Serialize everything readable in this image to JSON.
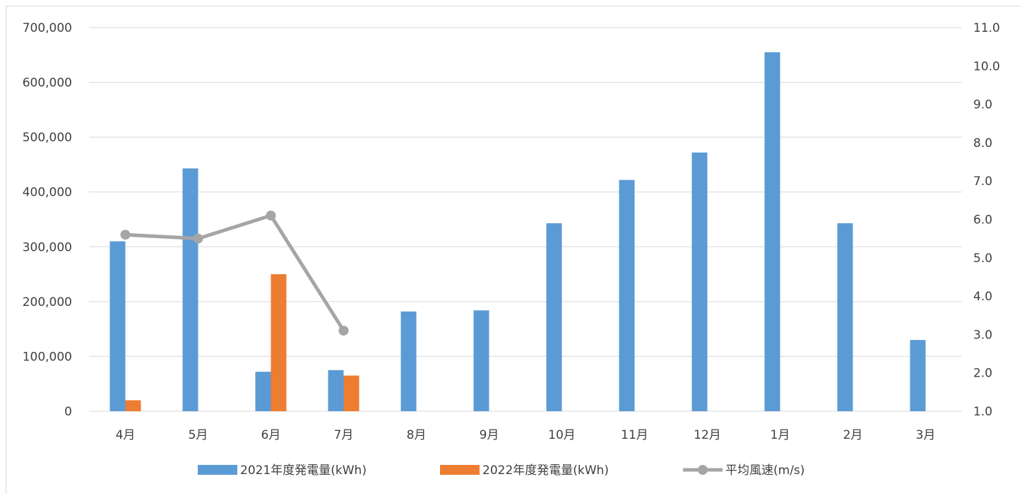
{
  "chart_data": {
    "type": "bar",
    "categories": [
      "4月",
      "5月",
      "6月",
      "7月",
      "8月",
      "9月",
      "10月",
      "11月",
      "12月",
      "1月",
      "2月",
      "3月"
    ],
    "series": [
      {
        "name": "2021年度発電量(kWh)",
        "type": "bar",
        "axis": "left",
        "color": "#5b9bd5",
        "values": [
          310000,
          443000,
          72000,
          75000,
          182000,
          184000,
          343000,
          422000,
          472000,
          655000,
          343000,
          130000
        ]
      },
      {
        "name": "2022年度発電量(kWh)",
        "type": "bar",
        "axis": "left",
        "color": "#ed7d31",
        "values": [
          20000,
          null,
          250000,
          65000,
          null,
          null,
          null,
          null,
          null,
          null,
          null,
          null
        ]
      },
      {
        "name": "平均風速(m/s)",
        "type": "line",
        "axis": "right",
        "color": "#a5a5a5",
        "values": [
          5.6,
          5.5,
          6.1,
          3.1,
          null,
          null,
          null,
          null,
          null,
          null,
          null,
          null
        ]
      }
    ],
    "y_left": {
      "ylim": [
        0,
        700000
      ],
      "ticks": [
        0,
        100000,
        200000,
        300000,
        400000,
        500000,
        600000,
        700000
      ],
      "tick_labels": [
        "0",
        "100,000",
        "200,000",
        "300,000",
        "400,000",
        "500,000",
        "600,000",
        "700,000"
      ]
    },
    "y_right": {
      "ylim": [
        1.0,
        11.0
      ],
      "ticks": [
        1,
        2,
        3,
        4,
        5,
        6,
        7,
        8,
        9,
        10,
        11
      ],
      "tick_labels": [
        "1.0",
        "2.0",
        "3.0",
        "4.0",
        "5.0",
        "6.0",
        "7.0",
        "8.0",
        "9.0",
        "10.0",
        "11.0"
      ]
    },
    "grid": true,
    "legend_position": "bottom"
  }
}
